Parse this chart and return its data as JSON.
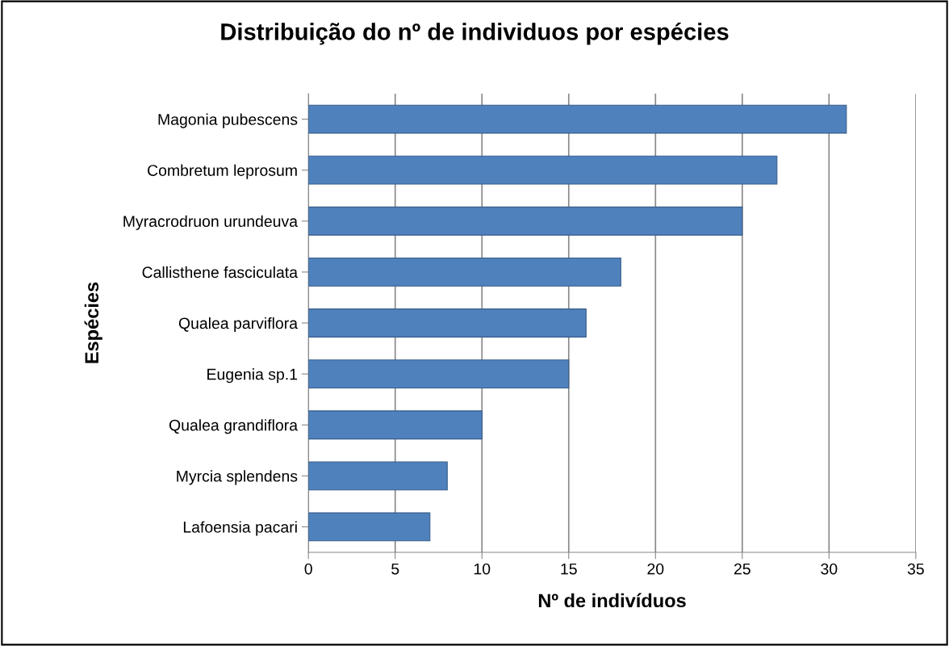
{
  "chart_data": {
    "type": "bar",
    "orientation": "horizontal",
    "title": "Distribuição do nº de individuos por espécies",
    "xlabel": "Nº de indivíduos",
    "ylabel": "Espécies",
    "categories": [
      "Magonia pubescens",
      "Combretum leprosum",
      "Myracrodruon urundeuva",
      "Callisthene fasciculata",
      "Qualea parviflora",
      "Eugenia sp.1",
      "Qualea grandiflora",
      "Myrcia splendens",
      "Lafoensia pacari"
    ],
    "values": [
      31,
      27,
      25,
      18,
      16,
      15,
      10,
      8,
      7
    ],
    "color": "#4f81bd",
    "xlim": [
      0,
      35
    ],
    "xticks": [
      0,
      5,
      10,
      15,
      20,
      25,
      30,
      35
    ],
    "grid": "x"
  }
}
